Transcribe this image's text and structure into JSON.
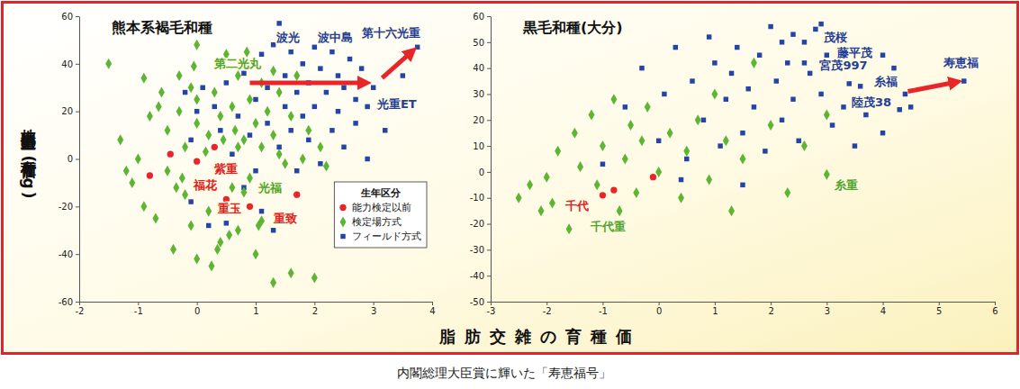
{
  "chart_data": [
    {
      "type": "scatter",
      "title": "熊本系褐毛和種",
      "x_label": "脂肪交雑の育種価",
      "y_label": "枝肉重量の育種価(kg)",
      "xlim": [
        -2,
        4
      ],
      "xticks": [
        -2,
        -1,
        0,
        1,
        2,
        3,
        4
      ],
      "ylim": [
        -60,
        60
      ],
      "yticks": [
        -60,
        -40,
        -20,
        0,
        20,
        40,
        60
      ],
      "grid": false,
      "legend": "lower right",
      "legend_title": "生年区分",
      "series": [
        {
          "name": "能力検定以前",
          "color": "#e8262a",
          "marker": "circle",
          "x": [
            -0.8,
            -0.45,
            0.0,
            0.3,
            0.5,
            0.9,
            1.7
          ],
          "values": [
            -7,
            2,
            -1,
            5,
            -17,
            -20,
            -15
          ]
        },
        {
          "name": "検定場方式",
          "color": "#5db534",
          "marker": "diamond",
          "x": [
            -1.5,
            -1.3,
            -1.2,
            -1.1,
            -0.9,
            -0.8,
            -0.7,
            -0.6,
            -0.5,
            -0.5,
            -0.4,
            -0.3,
            -0.3,
            -0.2,
            -0.2,
            -0.1,
            -0.1,
            0,
            0,
            0,
            -0.25,
            -0.05,
            0.2,
            0.2,
            0.3,
            0.35,
            0.4,
            0.4,
            0.5,
            0.7,
            0.6,
            0.6,
            0.7,
            0.7,
            0.8,
            0.8,
            0.9,
            0.9,
            1.0,
            1.0,
            1.1,
            1.1,
            1.1,
            1.2,
            1.3,
            1.3,
            1.4,
            1.4,
            1.5,
            1.6,
            1.6,
            1.7,
            1.8,
            1.9,
            2.0,
            2.1,
            2.2,
            -1.0,
            -0.9,
            0.0,
            0.25,
            0.55,
            0.15,
            -0.35,
            0.45,
            0.85,
            1.05,
            -0.65,
            1.3,
            0.65
          ],
          "values": [
            40,
            8,
            -5,
            -10,
            34,
            18,
            -25,
            28,
            12,
            -5,
            -38,
            35,
            20,
            5,
            -15,
            30,
            -28,
            48,
            15,
            25,
            -8,
            39,
            10,
            -22,
            28,
            -38,
            18,
            -35,
            44,
            5,
            22,
            -12,
            35,
            -30,
            8,
            -14,
            25,
            -8,
            15,
            -40,
            32,
            5,
            -26,
            20,
            -52,
            10,
            28,
            2,
            -2,
            18,
            -48,
            35,
            0,
            12,
            -50,
            5,
            -3,
            0,
            -20,
            -42,
            -45,
            -32,
            3,
            -12,
            8,
            45,
            -28,
            22,
            37,
            12
          ]
        },
        {
          "name": "フィールド方式",
          "color": "#2346a6",
          "marker": "square",
          "x": [
            -0.2,
            -0.1,
            0,
            0.1,
            0.2,
            0.3,
            0.4,
            0.5,
            0.5,
            0.6,
            0.7,
            0.8,
            0.8,
            0.9,
            1.0,
            1.0,
            1.1,
            1.1,
            1.2,
            1.2,
            1.3,
            1.3,
            1.4,
            1.4,
            1.5,
            1.5,
            1.6,
            1.6,
            1.7,
            1.7,
            1.8,
            1.8,
            1.9,
            1.9,
            2.0,
            2.0,
            2.1,
            2.1,
            2.2,
            2.3,
            2.3,
            2.4,
            2.4,
            2.5,
            2.5,
            2.6,
            2.7,
            2.7,
            2.8,
            2.9,
            2.9,
            3.0,
            3.2,
            3.5,
            3.75,
            -0.1
          ],
          "values": [
            28,
            -18,
            20,
            30,
            -28,
            22,
            12,
            -27,
            32,
            2,
            18,
            36,
            -12,
            10,
            25,
            -5,
            44,
            -22,
            15,
            30,
            -30,
            48,
            5,
            57,
            22,
            35,
            12,
            45,
            -5,
            28,
            40,
            18,
            8,
            32,
            47,
            22,
            -2,
            38,
            28,
            45,
            12,
            20,
            35,
            5,
            30,
            42,
            15,
            25,
            38,
            22,
            0,
            30,
            12,
            35,
            47,
            8
          ]
        }
      ],
      "annotations": [
        {
          "text": "第二光丸",
          "x": 0.7,
          "y": 40,
          "color": "#4fa52b"
        },
        {
          "text": "波光",
          "x": 1.55,
          "y": 51,
          "color": "#1f3f9a"
        },
        {
          "text": "波中島",
          "x": 2.35,
          "y": 51,
          "color": "#1f3f9a"
        },
        {
          "text": "第十六光重",
          "x": 3.3,
          "y": 53,
          "color": "#1f3f9a"
        },
        {
          "text": "光重ET",
          "x": 3.4,
          "y": 23,
          "color": "#1f3f9a"
        },
        {
          "text": "紫重",
          "x": 0.5,
          "y": -4,
          "color": "#e02020"
        },
        {
          "text": "福花",
          "x": 0.15,
          "y": -11,
          "color": "#e02020"
        },
        {
          "text": "光福",
          "x": 1.25,
          "y": -12,
          "color": "#4fa52b"
        },
        {
          "text": "重玉",
          "x": 0.55,
          "y": -21,
          "color": "#e02020"
        },
        {
          "text": "重致",
          "x": 1.5,
          "y": -25,
          "color": "#e02020"
        }
      ],
      "arrows": [
        {
          "from": [
            0.9,
            32
          ],
          "to": [
            2.85,
            32
          ]
        },
        {
          "from": [
            3.15,
            34
          ],
          "to": [
            3.65,
            45
          ]
        }
      ]
    },
    {
      "type": "scatter",
      "title": "黒毛和種(大分)",
      "xlim": [
        -3,
        6
      ],
      "xticks": [
        -3,
        -2,
        -1,
        0,
        1,
        2,
        3,
        4,
        5,
        6
      ],
      "ylim": [
        -50,
        60
      ],
      "yticks": [
        -50,
        -40,
        -30,
        -20,
        -10,
        0,
        10,
        20,
        30,
        40,
        50,
        60
      ],
      "grid": false,
      "series": [
        {
          "name": "能力検定以前",
          "color": "#e8262a",
          "marker": "circle",
          "x": [
            -1.0,
            -0.8,
            -0.1
          ],
          "values": [
            -9,
            -7,
            -2
          ]
        },
        {
          "name": "検定場方式",
          "color": "#5db534",
          "marker": "diamond",
          "x": [
            -2.5,
            -2.3,
            -2.1,
            -2.0,
            -1.8,
            -1.9,
            -1.5,
            -1.4,
            -1.2,
            -1.1,
            -1.0,
            -0.8,
            -0.7,
            -0.6,
            -0.5,
            -0.4,
            -0.3,
            -0.2,
            0.0,
            0.2,
            0.4,
            0.5,
            0.7,
            0.9,
            1.0,
            1.2,
            1.5,
            1.7,
            2.0,
            2.3,
            2.6,
            3.0,
            3.0,
            -1.6,
            1.3
          ],
          "values": [
            -10,
            -5,
            -15,
            -2,
            8,
            -12,
            15,
            2,
            22,
            -5,
            10,
            28,
            -15,
            5,
            18,
            -8,
            12,
            25,
            0,
            15,
            -10,
            8,
            20,
            -3,
            30,
            12,
            5,
            42,
            18,
            -8,
            10,
            22,
            -1,
            -22,
            -15
          ]
        },
        {
          "name": "フィールド方式",
          "color": "#2346a6",
          "marker": "square",
          "x": [
            -1.0,
            -0.6,
            -0.3,
            0,
            0.1,
            0.3,
            0.5,
            0.6,
            0.8,
            0.9,
            1.0,
            1.1,
            1.2,
            1.3,
            1.4,
            1.5,
            1.6,
            1.7,
            1.8,
            1.9,
            2.0,
            2.1,
            2.2,
            2.3,
            2.4,
            2.5,
            2.6,
            2.7,
            2.8,
            2.9,
            3.0,
            3.1,
            2.2,
            3.3,
            3.4,
            3.5,
            3.6,
            3.7,
            4.0,
            4.3,
            4.0,
            4.2,
            4.5,
            5.45,
            2.9,
            2.4,
            2.6,
            1.5,
            0.4,
            4.4
          ],
          "values": [
            3,
            25,
            40,
            12,
            30,
            48,
            5,
            35,
            20,
            52,
            42,
            10,
            28,
            38,
            48,
            15,
            32,
            25,
            45,
            8,
            56,
            35,
            20,
            42,
            28,
            12,
            50,
            38,
            55,
            30,
            45,
            18,
            50,
            25,
            34,
            10,
            33,
            22,
            45,
            24,
            15,
            40,
            25,
            35,
            57,
            53,
            42,
            -5,
            -3,
            30
          ]
        }
      ],
      "annotations": [
        {
          "text": "茂桜",
          "x": 3.15,
          "y": 52,
          "color": "#1f3f9a"
        },
        {
          "text": "藤平茂",
          "x": 3.5,
          "y": 46,
          "color": "#1f3f9a"
        },
        {
          "text": "宮茂997",
          "x": 3.3,
          "y": 41,
          "color": "#1f3f9a"
        },
        {
          "text": "糸福",
          "x": 4.05,
          "y": 35,
          "color": "#1f3f9a"
        },
        {
          "text": "陸茂38",
          "x": 3.8,
          "y": 27,
          "color": "#1f3f9a"
        },
        {
          "text": "寿恵福",
          "x": 5.4,
          "y": 42,
          "color": "#1f3f9a"
        },
        {
          "text": "糸重",
          "x": 3.35,
          "y": -5,
          "color": "#4fa52b"
        },
        {
          "text": "千代",
          "x": -1.45,
          "y": -13,
          "color": "#e02020"
        },
        {
          "text": "千代重",
          "x": -0.9,
          "y": -21,
          "color": "#4fa52b"
        }
      ],
      "arrows": [
        {
          "from": [
            4.45,
            31
          ],
          "to": [
            5.3,
            34.6
          ]
        }
      ]
    }
  ],
  "caption": "内閣総理大臣賞に輝いた「寿恵福号」"
}
